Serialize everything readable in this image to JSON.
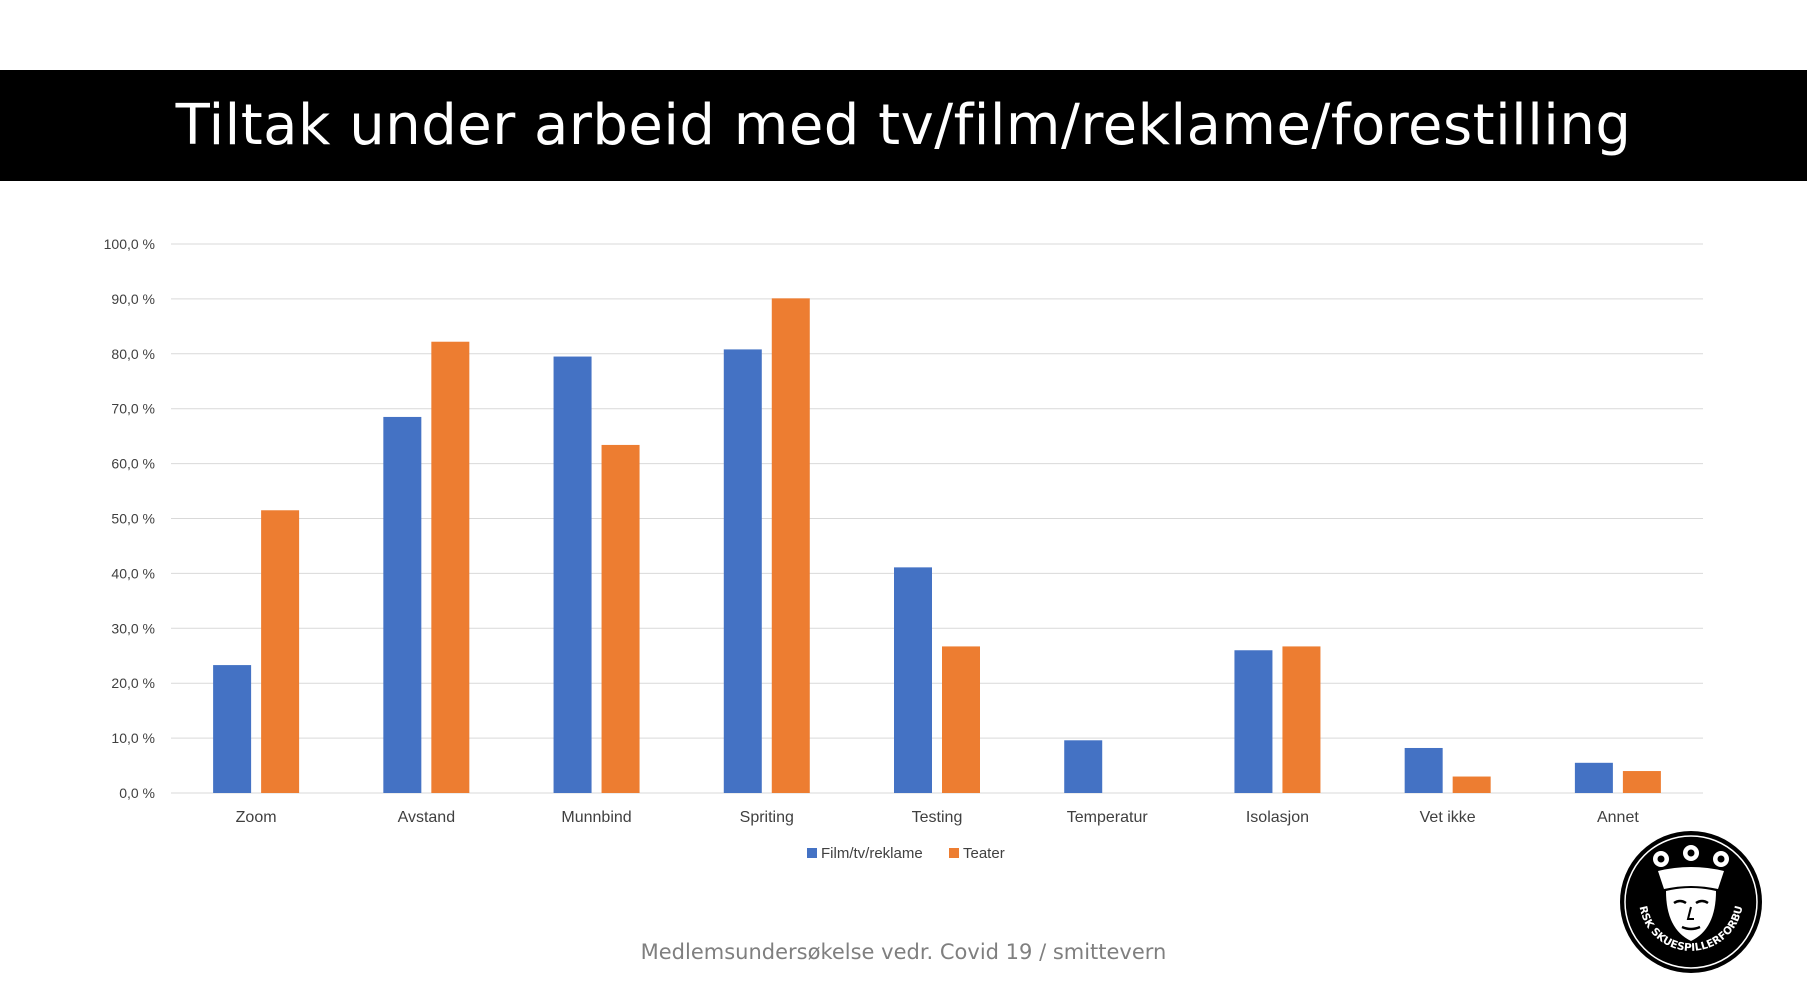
{
  "title": "Tiltak under arbeid med tv/film/reklame/forestilling",
  "footer": "Medlemsundersøkelse vedr. Covid 19 / smittevern",
  "logo_text": "NORSK SKUESPILLERFORBUND",
  "colors": {
    "series1": "#4472c4",
    "series2": "#ed7d31",
    "grid": "#d9d9d9",
    "axis_text": "#404040"
  },
  "chart_data": {
    "type": "bar",
    "categories": [
      "Zoom",
      "Avstand",
      "Munnbind",
      "Spriting",
      "Testing",
      "Temperatur",
      "Isolasjon",
      "Vet ikke",
      "Annet"
    ],
    "series": [
      {
        "name": "Film/tv/reklame",
        "values": [
          23.3,
          68.5,
          79.5,
          80.8,
          41.1,
          9.6,
          26.0,
          8.2,
          5.5
        ]
      },
      {
        "name": "Teater",
        "values": [
          51.5,
          82.2,
          63.4,
          90.1,
          26.7,
          0.0,
          26.7,
          3.0,
          4.0
        ]
      }
    ],
    "yticks": [
      "0,0 %",
      "10,0 %",
      "20,0 %",
      "30,0 %",
      "40,0 %",
      "50,0 %",
      "60,0 %",
      "70,0 %",
      "80,0 %",
      "90,0 %",
      "100,0 %"
    ],
    "ylim": [
      0,
      100
    ],
    "grid": true,
    "legend": "bottom"
  }
}
